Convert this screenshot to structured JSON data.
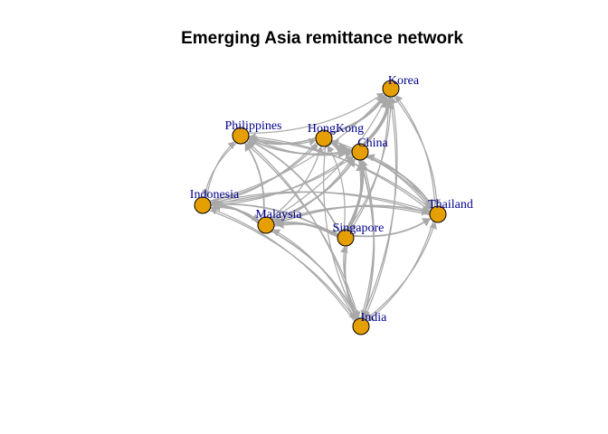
{
  "title": "Emerging Asia remittance network",
  "colors": {
    "node_fill": "#e69f00",
    "node_border": "#000000",
    "edge": "#a9a9a9",
    "label": "#00008b"
  },
  "nodes": [
    {
      "id": "korea",
      "label": "Korea"
    },
    {
      "id": "philippines",
      "label": "Philippines"
    },
    {
      "id": "hongkong",
      "label": "HongKong"
    },
    {
      "id": "china",
      "label": "China"
    },
    {
      "id": "indonesia",
      "label": "Indonesia"
    },
    {
      "id": "thailand",
      "label": "Thailand"
    },
    {
      "id": "malaysia",
      "label": "Malaysia"
    },
    {
      "id": "singapore",
      "label": "Singapore"
    },
    {
      "id": "india",
      "label": "India"
    }
  ],
  "edges": [
    {
      "from": "hongkong",
      "to": "china",
      "weight": 6
    },
    {
      "from": "china",
      "to": "korea",
      "weight": 5
    },
    {
      "from": "hongkong",
      "to": "korea",
      "weight": 3
    },
    {
      "from": "singapore",
      "to": "china",
      "weight": 4
    },
    {
      "from": "malaysia",
      "to": "china",
      "weight": 2
    },
    {
      "from": "indonesia",
      "to": "china",
      "weight": 1
    },
    {
      "from": "philippines",
      "to": "china",
      "weight": 1
    },
    {
      "from": "thailand",
      "to": "china",
      "weight": 1
    },
    {
      "from": "india",
      "to": "china",
      "weight": 1
    },
    {
      "from": "philippines",
      "to": "korea",
      "weight": 1
    },
    {
      "from": "singapore",
      "to": "korea",
      "weight": 1
    },
    {
      "from": "thailand",
      "to": "korea",
      "weight": 1
    },
    {
      "from": "korea",
      "to": "thailand",
      "weight": 1
    },
    {
      "from": "malaysia",
      "to": "korea",
      "weight": 1
    },
    {
      "from": "indonesia",
      "to": "korea",
      "weight": 1
    },
    {
      "from": "india",
      "to": "korea",
      "weight": 1
    },
    {
      "from": "philippines",
      "to": "hongkong",
      "weight": 1
    },
    {
      "from": "hongkong",
      "to": "philippines",
      "weight": 2
    },
    {
      "from": "china",
      "to": "philippines",
      "weight": 2
    },
    {
      "from": "malaysia",
      "to": "philippines",
      "weight": 2
    },
    {
      "from": "singapore",
      "to": "philippines",
      "weight": 2
    },
    {
      "from": "thailand",
      "to": "philippines",
      "weight": 1
    },
    {
      "from": "philippines",
      "to": "indonesia",
      "weight": 1
    },
    {
      "from": "indonesia",
      "to": "philippines",
      "weight": 1
    },
    {
      "from": "india",
      "to": "philippines",
      "weight": 1
    },
    {
      "from": "indonesia",
      "to": "hongkong",
      "weight": 1
    },
    {
      "from": "malaysia",
      "to": "hongkong",
      "weight": 1
    },
    {
      "from": "singapore",
      "to": "hongkong",
      "weight": 1
    },
    {
      "from": "thailand",
      "to": "hongkong",
      "weight": 1
    },
    {
      "from": "malaysia",
      "to": "indonesia",
      "weight": 3
    },
    {
      "from": "singapore",
      "to": "indonesia",
      "weight": 2
    },
    {
      "from": "china",
      "to": "indonesia",
      "weight": 1
    },
    {
      "from": "thailand",
      "to": "indonesia",
      "weight": 1
    },
    {
      "from": "india",
      "to": "indonesia",
      "weight": 1
    },
    {
      "from": "hongkong",
      "to": "indonesia",
      "weight": 1
    },
    {
      "from": "singapore",
      "to": "malaysia",
      "weight": 3
    },
    {
      "from": "china",
      "to": "malaysia",
      "weight": 1
    },
    {
      "from": "thailand",
      "to": "malaysia",
      "weight": 1
    },
    {
      "from": "india",
      "to": "malaysia",
      "weight": 1
    },
    {
      "from": "indonesia",
      "to": "malaysia",
      "weight": 1
    },
    {
      "from": "china",
      "to": "thailand",
      "weight": 2
    },
    {
      "from": "malaysia",
      "to": "thailand",
      "weight": 2
    },
    {
      "from": "singapore",
      "to": "thailand",
      "weight": 2
    },
    {
      "from": "hongkong",
      "to": "thailand",
      "weight": 1
    },
    {
      "from": "indonesia",
      "to": "thailand",
      "weight": 1
    },
    {
      "from": "philippines",
      "to": "thailand",
      "weight": 1
    },
    {
      "from": "india",
      "to": "thailand",
      "weight": 1
    },
    {
      "from": "singapore",
      "to": "india",
      "weight": 2
    },
    {
      "from": "malaysia",
      "to": "india",
      "weight": 2
    },
    {
      "from": "china",
      "to": "india",
      "weight": 2
    },
    {
      "from": "thailand",
      "to": "india",
      "weight": 1
    },
    {
      "from": "indonesia",
      "to": "india",
      "weight": 1
    },
    {
      "from": "hongkong",
      "to": "india",
      "weight": 1
    },
    {
      "from": "korea",
      "to": "india",
      "weight": 1
    },
    {
      "from": "philippines",
      "to": "india",
      "weight": 1
    },
    {
      "from": "china",
      "to": "singapore",
      "weight": 1
    },
    {
      "from": "india",
      "to": "singapore",
      "weight": 1
    },
    {
      "from": "malaysia",
      "to": "singapore",
      "weight": 1
    },
    {
      "from": "korea",
      "to": "singapore",
      "weight": 1
    }
  ]
}
